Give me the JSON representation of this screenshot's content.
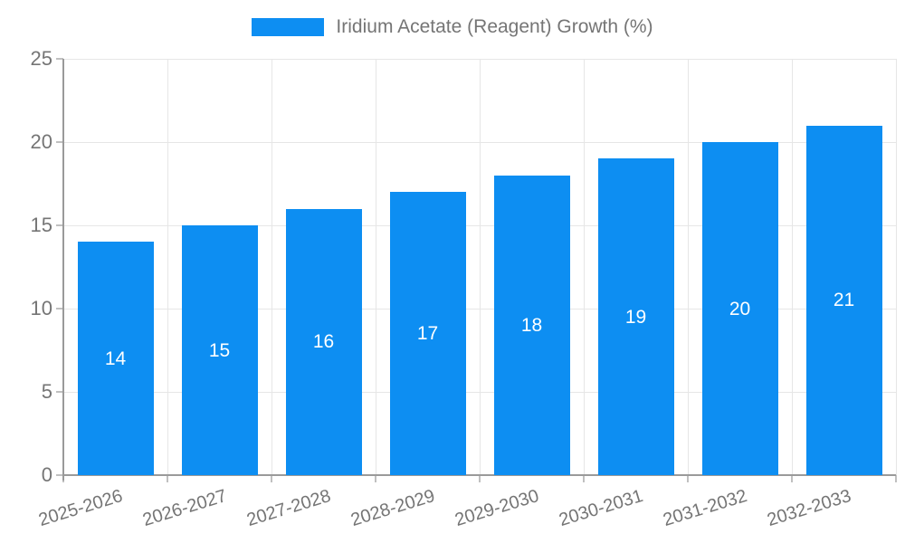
{
  "legend": {
    "label": "Iridium Acetate (Reagent) Growth (%)",
    "swatch_color": "#0d8ef2"
  },
  "chart_data": {
    "type": "bar",
    "title": "",
    "series_name": "Iridium Acetate (Reagent) Growth (%)",
    "categories": [
      "2025-2026",
      "2026-2027",
      "2027-2028",
      "2028-2029",
      "2029-2030",
      "2030-2031",
      "2031-2032",
      "2032-2033"
    ],
    "values": [
      14,
      15,
      16,
      17,
      18,
      19,
      20,
      21
    ],
    "xlabel": "",
    "ylabel": "",
    "ylim": [
      0,
      25
    ],
    "yticks": [
      0,
      5,
      10,
      15,
      20,
      25
    ],
    "grid": true,
    "legend_position": "top",
    "bar_color": "#0d8ef2",
    "value_label_color": "#ffffff",
    "value_labels_shown": true
  },
  "colors": {
    "background": "#ffffff",
    "gridline": "#e6e6e6",
    "axis_line": "#9a9a9a",
    "tick_mark": "#c0c0c0",
    "tick_text": "#757575",
    "bar": "#0d8ef2",
    "value_text": "#ffffff"
  }
}
